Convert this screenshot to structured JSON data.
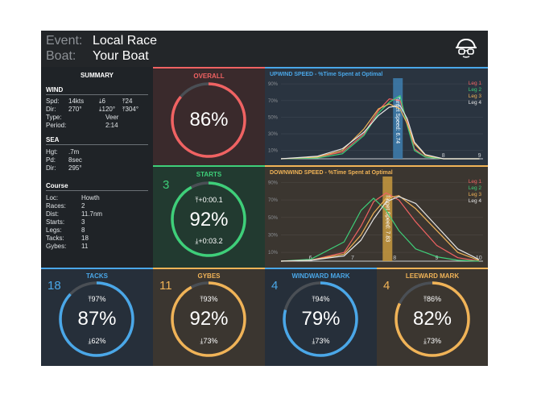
{
  "header": {
    "event_label": "Event:",
    "event_value": "Local Race",
    "boat_label": "Boat:",
    "boat_value": "Your Boat",
    "logo_icon": "sailor-glasses-icon"
  },
  "summary": {
    "title": "SUMMARY",
    "wind": {
      "title": "WIND",
      "spd_label": "Spd:",
      "spd_value": "14kts",
      "spd_min": "⤓6",
      "spd_max": "⤒24",
      "dir_label": "Dir:",
      "dir_value": "270°",
      "dir_left": "⤓120°",
      "dir_right": "⤒304°",
      "type_label": "Type:",
      "type_value": "Veer",
      "period_label": "Period:",
      "period_value": "2:14"
    },
    "sea": {
      "title": "SEA",
      "hgt_label": "Hgt:",
      "hgt_value": ".7m",
      "pd_label": "Pd:",
      "pd_value": "8sec",
      "dir_label": "Dir:",
      "dir_value": "295°"
    },
    "course": {
      "title": "Course",
      "loc_label": "Loc:",
      "loc_value": "Howth",
      "races_label": "Races:",
      "races_value": "2",
      "dist_label": "Dist:",
      "dist_value": "11.7nm",
      "starts_label": "Starts:",
      "starts_value": "3",
      "legs_label": "Legs:",
      "legs_value": "8",
      "tacks_label": "Tacks:",
      "tacks_value": "18",
      "gybes_label": "Gybes:",
      "gybes_value": "11"
    }
  },
  "overall": {
    "title": "OVERALL",
    "value": "86%",
    "pct": 86,
    "color": "#f06262"
  },
  "starts": {
    "title": "STARTS",
    "count": "3",
    "value": "92%",
    "pct": 92,
    "top": "⤒+0:00.1",
    "bottom": "⤓+0:03.2",
    "color": "#3ecf79"
  },
  "tacks": {
    "title": "TACKS",
    "count": "18",
    "value": "87%",
    "pct": 87,
    "top": "⤒97%",
    "bottom": "⤓62%",
    "color": "#4aa7e8"
  },
  "gybes": {
    "title": "GYBES",
    "count": "11",
    "value": "92%",
    "pct": 92,
    "top": "⤒93%",
    "bottom": "⤓73%",
    "color": "#f0b357"
  },
  "windward": {
    "title": "WINDWARD MARK",
    "count": "4",
    "value": "79%",
    "pct": 79,
    "top": "⤒94%",
    "bottom": "⤓73%",
    "color": "#4aa7e8"
  },
  "leeward": {
    "title": "LEEWARD MARK",
    "count": "4",
    "value": "82%",
    "pct": 82,
    "top": "⤒86%",
    "bottom": "⤓73%",
    "color": "#f0b357"
  },
  "chart_data": [
    {
      "type": "line",
      "title": "UPWIND SPEED - %Time Spent at Optimal",
      "ylim": [
        0,
        95
      ],
      "yticks": [
        "90%",
        "70%",
        "50%",
        "30%",
        "10%"
      ],
      "xlim": [
        3.5,
        9.1
      ],
      "xticks": [
        "8",
        "9"
      ],
      "target_label": "Target Speed: 6.74",
      "target_x": 6.74,
      "legend": [
        "Leg 1",
        "Leg 2",
        "Leg 3",
        "Leg 4"
      ],
      "series_colors": [
        "#f06262",
        "#3ecf79",
        "#f0b357",
        "#e6e6e6"
      ],
      "series": [
        {
          "name": "Leg 1",
          "x": [
            3.5,
            4.5,
            5.2,
            5.8,
            6.2,
            6.5,
            6.8,
            7.0,
            7.2,
            7.5,
            8.0,
            9.0
          ],
          "values": [
            0,
            2,
            8,
            30,
            58,
            72,
            70,
            45,
            12,
            2,
            0,
            0
          ]
        },
        {
          "name": "Leg 2",
          "x": [
            3.5,
            4.5,
            5.2,
            5.8,
            6.2,
            6.5,
            6.8,
            7.0,
            7.2,
            7.5,
            8.0,
            9.0
          ],
          "values": [
            0,
            1,
            6,
            28,
            55,
            68,
            76,
            40,
            10,
            2,
            0,
            0
          ]
        },
        {
          "name": "Leg 3",
          "x": [
            3.5,
            4.5,
            5.2,
            5.8,
            6.2,
            6.5,
            6.8,
            7.0,
            7.2,
            7.5,
            8.0,
            9.0
          ],
          "values": [
            0,
            2,
            10,
            36,
            60,
            66,
            60,
            42,
            18,
            4,
            0,
            0
          ]
        },
        {
          "name": "Leg 4",
          "x": [
            3.5,
            4.5,
            5.2,
            5.8,
            6.2,
            6.5,
            6.8,
            7.0,
            7.2,
            7.5,
            8.0,
            9.0
          ],
          "values": [
            0,
            3,
            12,
            32,
            52,
            62,
            64,
            48,
            20,
            5,
            0,
            0
          ]
        }
      ]
    },
    {
      "type": "line",
      "title": "DOWNWIND SPEED - %Time Spent at Optimal",
      "ylim": [
        0,
        95
      ],
      "yticks": [
        "90%",
        "70%",
        "50%",
        "30%",
        "10%"
      ],
      "xlim": [
        5.3,
        10.1
      ],
      "xticks": [
        "6",
        "7",
        "8",
        "9",
        "10"
      ],
      "target_label": "Target Speed: 7.83",
      "target_x": 7.83,
      "legend": [
        "Leg 1",
        "Leg 2",
        "Leg 3",
        "Leg 4"
      ],
      "series_colors": [
        "#f06262",
        "#3ecf79",
        "#f0b357",
        "#e6e6e6"
      ],
      "series": [
        {
          "name": "Leg 1",
          "x": [
            5.3,
            6.0,
            6.8,
            7.2,
            7.5,
            7.8,
            8.1,
            8.5,
            9.0,
            9.5,
            10.0
          ],
          "values": [
            0,
            1,
            10,
            40,
            68,
            78,
            70,
            45,
            18,
            4,
            0
          ]
        },
        {
          "name": "Leg 2",
          "x": [
            5.3,
            6.0,
            6.8,
            7.2,
            7.5,
            7.8,
            8.1,
            8.5,
            9.0,
            9.5,
            10.0
          ],
          "values": [
            0,
            2,
            22,
            58,
            72,
            58,
            35,
            14,
            5,
            1,
            0
          ]
        },
        {
          "name": "Leg 3",
          "x": [
            5.3,
            6.0,
            6.8,
            7.2,
            7.5,
            7.8,
            8.1,
            8.5,
            9.0,
            9.5,
            10.0
          ],
          "values": [
            0,
            1,
            8,
            30,
            55,
            72,
            75,
            60,
            35,
            10,
            1
          ]
        },
        {
          "name": "Leg 4",
          "x": [
            5.3,
            6.0,
            6.8,
            7.2,
            7.5,
            7.8,
            8.1,
            8.5,
            9.0,
            9.5,
            10.0
          ],
          "values": [
            0,
            1,
            6,
            24,
            48,
            68,
            74,
            66,
            40,
            14,
            2
          ]
        }
      ]
    }
  ]
}
